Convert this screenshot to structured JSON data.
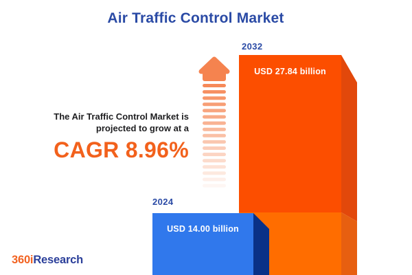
{
  "title": "Air Traffic Control Market",
  "annotation": {
    "line1": "The Air Traffic Control Market is",
    "line2": "projected to grow at a",
    "cagr": "CAGR 8.96%"
  },
  "bars": {
    "y2024": {
      "year": "2024",
      "value_label": "USD 14.00 billion"
    },
    "y2032": {
      "year": "2032",
      "value_label": "USD 27.84 billion"
    }
  },
  "logo": {
    "part1": "360i",
    "part2": "Research"
  },
  "colors": {
    "title_blue": "#2A4AA5",
    "cagr_orange": "#F2611C",
    "annotation_text": "#1E1E20",
    "bar_2032_front_top": "#FC4E00",
    "bar_2032_front_bottom": "#FF6D00",
    "bar_2032_side_top": "#E2480B",
    "bar_2032_side_bottom": "#E75F10",
    "bar_2024_front": "#3078EC",
    "bar_2024_side": "#0A3187",
    "arrow_orange": "#F5834F",
    "logo_orange": "#F26322",
    "logo_blue": "#2B3F9A",
    "background": "#FFFFFF"
  },
  "chart_data": {
    "type": "bar",
    "categories": [
      "2024",
      "2032"
    ],
    "values": [
      14.0,
      27.84
    ],
    "value_labels": [
      "USD 14.00 billion",
      "USD 27.84 billion"
    ],
    "unit": "USD billion",
    "series_name": "Air Traffic Control Market size",
    "title": "Air Traffic Control Market",
    "annotations": [
      "The Air Traffic Control Market is projected to grow at a CAGR 8.96%"
    ],
    "cagr_percent": 8.96,
    "bar_colors": [
      "#3078EC",
      "#FC4E00"
    ],
    "style": "3d-infographic",
    "axes": "none",
    "grid": false,
    "legend": "none"
  }
}
